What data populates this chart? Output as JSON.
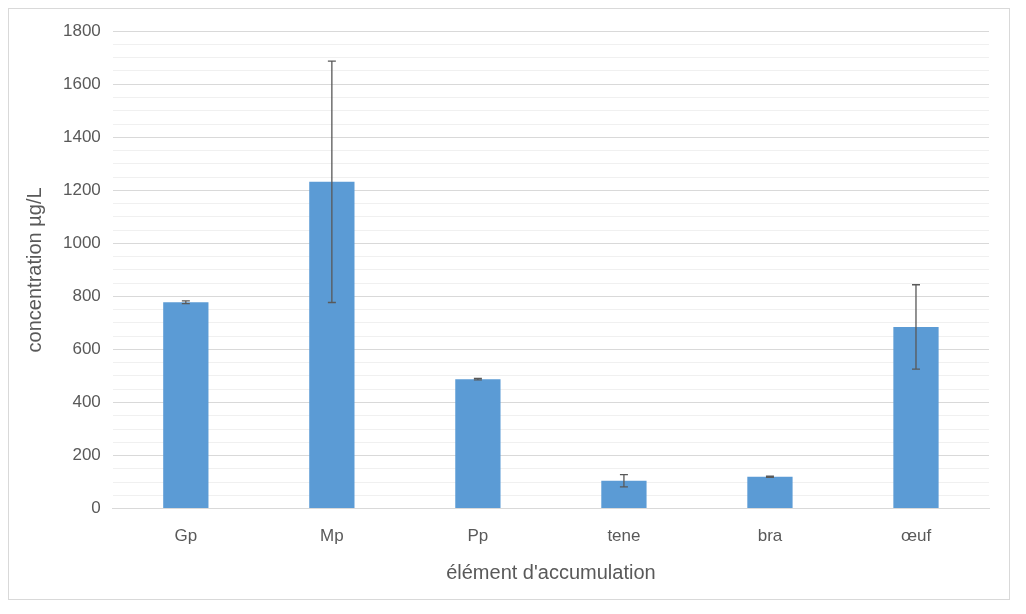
{
  "chart_data": {
    "type": "bar",
    "xlabel": "élément d'accumulation",
    "ylabel": "concentration µg/L",
    "categories": [
      "Gp",
      "Mp",
      "Pp",
      "tene",
      "bra",
      "œuf"
    ],
    "values": [
      778,
      1232,
      488,
      105,
      120,
      685
    ],
    "errors": [
      5,
      455,
      3,
      23,
      2,
      159
    ],
    "color": "#5b9bd5",
    "ylim": [
      0,
      1800
    ],
    "yticks": [
      0,
      {
        "value": 50,
        "label": null
      },
      200,
      {
        "value": 100,
        "label": null
      },
      {
        "value": 150,
        "label": null
      },
      400,
      {
        "value": 250,
        "label": null
      },
      {
        "value": 300,
        "label": null
      },
      {
        "value": 350,
        "label": null
      },
      600,
      {
        "value": 450,
        "label": null
      },
      {
        "value": 500,
        "label": null
      },
      {
        "value": 550,
        "label": null
      },
      800,
      {
        "value": 650,
        "label": null
      },
      {
        "value": 700,
        "label": null
      },
      {
        "value": 750,
        "label": null
      },
      1000,
      {
        "value": 850,
        "label": null
      },
      {
        "value": 900,
        "label": null
      },
      {
        "value": 950,
        "label": null
      },
      1200,
      {
        "value": 1050,
        "label": null
      },
      {
        "value": 1100,
        "label": null
      },
      {
        "value": 1150,
        "label": null
      },
      1400,
      {
        "value": 1250,
        "label": null
      },
      {
        "value": 1300,
        "label": null
      },
      {
        "value": 1350,
        "label": null
      },
      1600,
      {
        "value": 1450,
        "label": null
      },
      {
        "value": 1500,
        "label": null
      },
      {
        "value": 1550,
        "label": null
      },
      1800,
      {
        "value": 1650,
        "label": null
      },
      {
        "value": 1700,
        "label": null
      },
      {
        "value": 1750,
        "label": null
      }
    ],
    "grid": "y",
    "legend": false
  }
}
